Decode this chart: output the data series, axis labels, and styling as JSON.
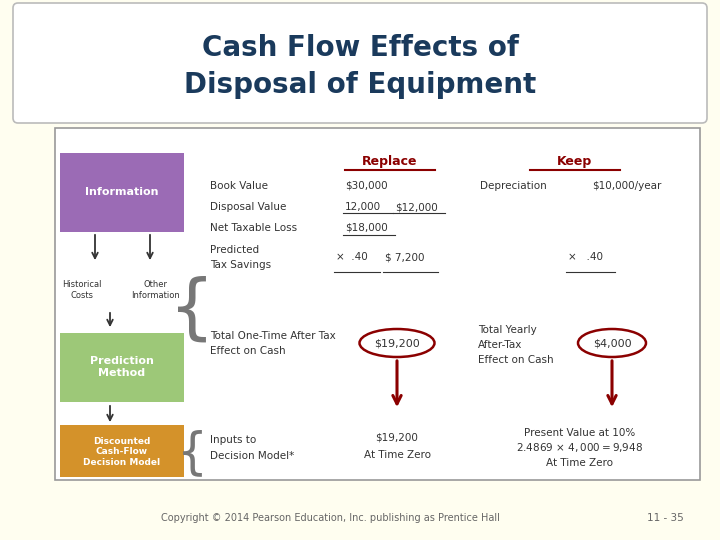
{
  "title_line1": "Cash Flow Effects of",
  "title_line2": "Disposal of Equipment",
  "title_color": "#1a3a5c",
  "bg_color": "#fffef0",
  "footer_text": "Copyright © 2014 Pearson Education, Inc. publishing as Prentice Hall",
  "footer_right": "11 - 35",
  "replace_color": "#8b0000",
  "keep_color": "#8b0000",
  "arrow_color": "#8b0000",
  "circle_color": "#8b0000",
  "info_box_color": "#9b6bb5",
  "pred_box_color": "#9dc878",
  "disc_box_color": "#d4922a",
  "border_color": "#999999",
  "text_color": "#333333"
}
